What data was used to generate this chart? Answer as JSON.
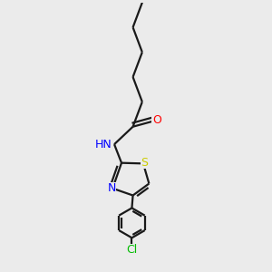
{
  "background_color": "#ebebeb",
  "bond_color": "#1a1a1a",
  "atom_colors": {
    "O": "#ff0000",
    "N": "#0000ff",
    "S": "#cccc00",
    "Cl": "#00bb00",
    "H": "#555555"
  },
  "line_width": 1.6,
  "font_size": 8.5,
  "fig_width": 3.0,
  "fig_height": 3.0,
  "dpi": 100
}
